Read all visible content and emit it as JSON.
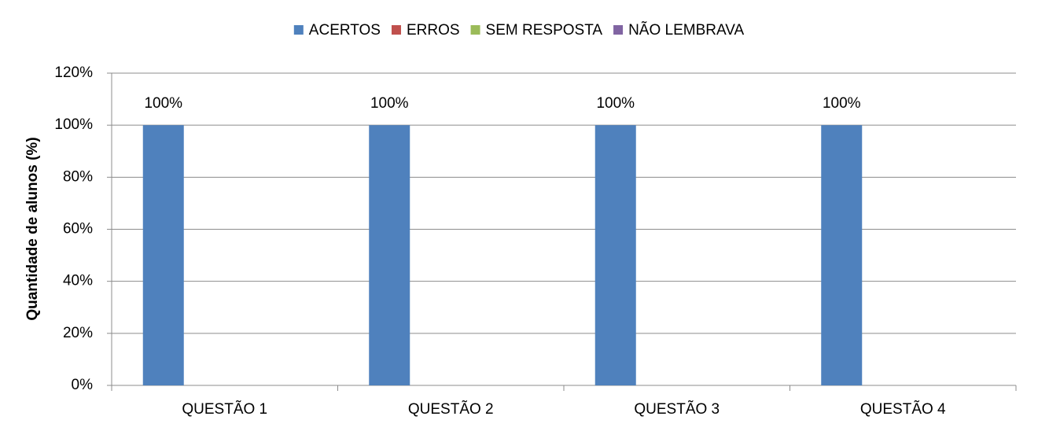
{
  "chart_data": {
    "type": "bar",
    "y_label": "Quantidade de alunos (%)",
    "categories": [
      "QUESTÃO 1",
      "QUESTÃO 2",
      "QUESTÃO 3",
      "QUESTÃO 4"
    ],
    "series": [
      {
        "name": "ACERTOS",
        "color": "#4f81bd",
        "values": [
          100,
          100,
          100,
          100
        ],
        "value_labels": [
          "100%",
          "100%",
          "100%",
          "100%"
        ]
      },
      {
        "name": "ERROS",
        "color": "#c0504d",
        "values": [
          0,
          0,
          0,
          0
        ]
      },
      {
        "name": "SEM RESPOSTA",
        "color": "#9bbb59",
        "values": [
          0,
          0,
          0,
          0
        ]
      },
      {
        "name": "NÃO LEMBRAVA",
        "color": "#8064a2",
        "values": [
          0,
          0,
          0,
          0
        ]
      }
    ],
    "ylim": [
      0,
      120
    ],
    "yticks": [
      {
        "value": 0,
        "label": "0%"
      },
      {
        "value": 20,
        "label": "20%"
      },
      {
        "value": 40,
        "label": "40%"
      },
      {
        "value": 60,
        "label": "60%"
      },
      {
        "value": 80,
        "label": "80%"
      },
      {
        "value": 100,
        "label": "100%"
      },
      {
        "value": 120,
        "label": "120%"
      }
    ],
    "grid": true,
    "legend": "top"
  }
}
